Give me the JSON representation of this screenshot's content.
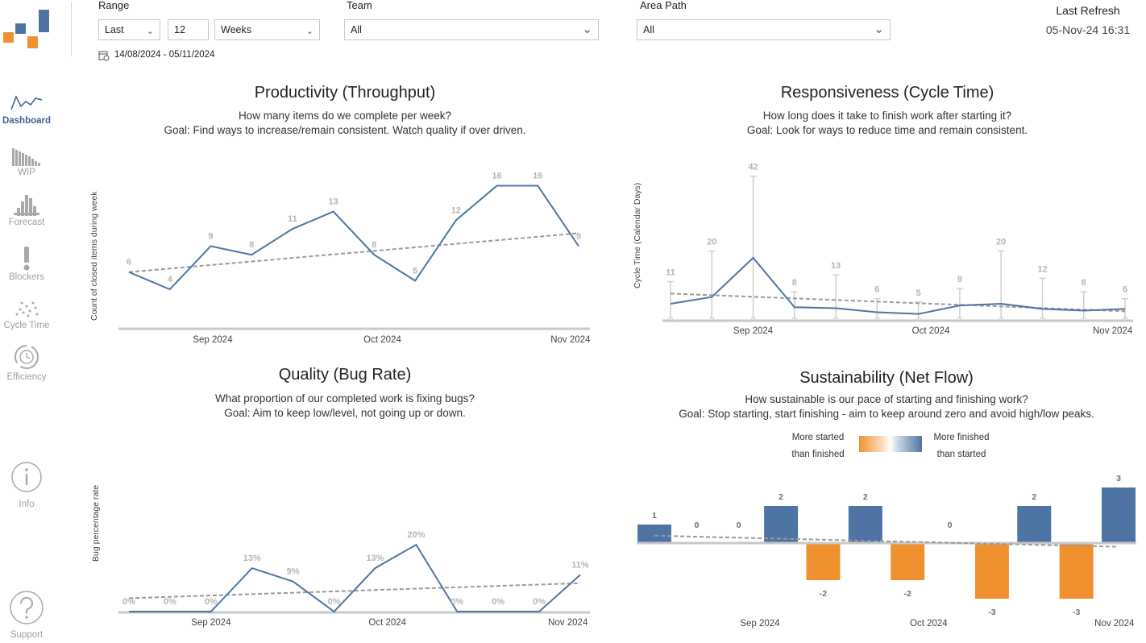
{
  "colors": {
    "blue": "#4e74a4",
    "orange": "#f0912f",
    "gray_label": "#b4b4b4",
    "trend": "#999999",
    "axis": "#c8c8c8"
  },
  "sidebar": {
    "items": [
      {
        "label": "Dashboard",
        "icon": "line-chart-icon",
        "active": true
      },
      {
        "label": "WIP",
        "icon": "wip-chart-icon",
        "active": false
      },
      {
        "label": "Forecast",
        "icon": "histogram-icon",
        "active": false
      },
      {
        "label": "Blockers",
        "icon": "exclamation-icon",
        "active": false
      },
      {
        "label": "Cycle Time",
        "icon": "scatter-icon",
        "active": false
      },
      {
        "label": "Efficiency",
        "icon": "clock-cycle-icon",
        "active": false
      }
    ],
    "info_label": "Info",
    "support_label": "Support"
  },
  "filters": {
    "range_label": "Range",
    "range_mode": "Last",
    "range_count": "12",
    "range_unit": "Weeks",
    "date_range": "14/08/2024 - 05/11/2024",
    "team_label": "Team",
    "team_value": "All",
    "area_label": "Area Path",
    "area_value": "All"
  },
  "refresh": {
    "label": "Last Refresh",
    "value": "05-Nov-24 16:31"
  },
  "panels": {
    "productivity": {
      "title": "Productivity (Throughput)",
      "subtitle1": "How many items do we complete per week?",
      "subtitle2": "Goal: Find ways to increase/remain consistent. Watch quality if over driven."
    },
    "responsiveness": {
      "title": "Responsiveness (Cycle Time)",
      "subtitle1": "How long does it take to finish work after starting it?",
      "subtitle2": "Goal: Look for ways to reduce time and remain consistent."
    },
    "quality": {
      "title": "Quality (Bug Rate)",
      "subtitle1": "What proportion of our completed work is fixing bugs?",
      "subtitle2": "Goal: Aim to keep low/level, not going up or down."
    },
    "sustainability": {
      "title": "Sustainability (Net Flow)",
      "subtitle1": "How sustainable is our pace of starting and finishing work?",
      "subtitle2": "Goal: Stop starting, start finishing - aim to keep around zero and avoid high/low peaks.",
      "legend_left1": "More started",
      "legend_left2": "than finished",
      "legend_right1": "More finished",
      "legend_right2": "than started"
    }
  },
  "chart_data": [
    {
      "id": "throughput",
      "type": "line",
      "title": "Productivity (Throughput)",
      "ylabel": "Count of closed items during week",
      "xlabel": "",
      "x": [
        1,
        2,
        3,
        4,
        5,
        6,
        7,
        8,
        9,
        10,
        11,
        12
      ],
      "values": [
        6,
        4,
        9,
        8,
        11,
        13,
        8,
        5,
        12,
        16,
        16,
        9
      ],
      "value_labels": [
        "6",
        "4",
        "9",
        "8",
        "11",
        "13",
        "8",
        "5",
        "12",
        "16",
        "16",
        "9"
      ],
      "trend": [
        6.0,
        10.5
      ],
      "ylim": [
        0,
        18
      ],
      "xticks": [
        {
          "label": "Sep 2024",
          "at": 3.05
        },
        {
          "label": "Oct 2024",
          "at": 7.2
        },
        {
          "label": "Nov 2024",
          "at": 11.8
        }
      ],
      "grid": false
    },
    {
      "id": "cycle_time",
      "type": "line",
      "title": "Responsiveness (Cycle Time)",
      "ylabel": "Cycle  Time (Calendar Days)",
      "x": [
        1,
        2,
        3,
        4,
        5,
        6,
        7,
        8,
        9,
        10,
        11,
        12
      ],
      "values": [
        4.5,
        6.5,
        18,
        3.5,
        3.2,
        2,
        1.5,
        4,
        4.5,
        3,
        2.5,
        3
      ],
      "max": [
        11,
        20,
        42,
        8,
        13,
        6,
        5,
        9,
        20,
        12,
        8,
        6
      ],
      "min": [
        0,
        0,
        0,
        0,
        0,
        0,
        0,
        0,
        0,
        0,
        0,
        0
      ],
      "max_labels": [
        "11",
        "20",
        "42",
        "8",
        "13",
        "6",
        "5",
        "9",
        "20",
        "12",
        "8",
        "6"
      ],
      "trend": [
        7.5,
        2.3
      ],
      "ylim": [
        0,
        45
      ],
      "xticks": [
        {
          "label": "Sep 2024",
          "at": 3.0
        },
        {
          "label": "Oct 2024",
          "at": 7.3
        },
        {
          "label": "Nov 2024",
          "at": 11.7
        }
      ],
      "grid": false
    },
    {
      "id": "bug_rate",
      "type": "line",
      "title": "Quality (Bug Rate)",
      "ylabel": "Bug percentage rate",
      "x": [
        1,
        2,
        3,
        4,
        5,
        6,
        7,
        8,
        9,
        10,
        11,
        12
      ],
      "values": [
        0,
        0,
        0,
        13,
        9,
        0,
        13,
        20,
        0,
        0,
        0,
        11
      ],
      "value_labels": [
        "0%",
        "0%",
        "0%",
        "13%",
        "9%",
        "0%",
        "13%",
        "20%",
        "0%",
        "0%",
        "0%",
        "11%"
      ],
      "trend": [
        4,
        8.5
      ],
      "ylim": [
        0,
        48
      ],
      "xticks": [
        {
          "label": "Sep 2024",
          "at": 3.0
        },
        {
          "label": "Oct 2024",
          "at": 7.3
        },
        {
          "label": "Nov 2024",
          "at": 11.7
        }
      ],
      "grid": false
    },
    {
      "id": "net_flow",
      "type": "bar",
      "title": "Sustainability (Net Flow)",
      "x": [
        1,
        2,
        3,
        4,
        5,
        6,
        7,
        8,
        9,
        10,
        11,
        12
      ],
      "values": [
        1,
        0,
        0,
        2,
        -2,
        2,
        -2,
        0,
        -3,
        2,
        -3,
        3
      ],
      "value_labels": [
        "1",
        "0",
        "0",
        "2",
        "-2",
        "2",
        "-2",
        "0",
        "-3",
        "2",
        "-3",
        "3"
      ],
      "trend": [
        0.4,
        -0.2
      ],
      "ylim": [
        -3,
        3
      ],
      "xticks": [
        {
          "label": "Sep 2024",
          "at": 3.5
        },
        {
          "label": "Oct 2024",
          "at": 7.5
        },
        {
          "label": "Nov 2024",
          "at": 11.9
        }
      ],
      "grid": false
    }
  ]
}
